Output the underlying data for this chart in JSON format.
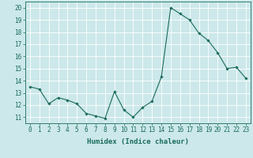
{
  "x": [
    0,
    1,
    2,
    3,
    4,
    5,
    6,
    7,
    8,
    9,
    10,
    11,
    12,
    13,
    14,
    15,
    16,
    17,
    18,
    19,
    20,
    21,
    22,
    23
  ],
  "y": [
    13.5,
    13.3,
    12.1,
    12.6,
    12.4,
    12.1,
    11.3,
    11.1,
    10.9,
    13.1,
    11.6,
    11.0,
    11.8,
    12.3,
    14.3,
    20.0,
    19.5,
    19.0,
    17.9,
    17.3,
    16.3,
    15.0,
    15.1,
    14.2
  ],
  "xlabel": "Humidex (Indice chaleur)",
  "ylabel": "",
  "xlim": [
    -0.5,
    23.5
  ],
  "ylim": [
    10.5,
    20.5
  ],
  "yticks": [
    11,
    12,
    13,
    14,
    15,
    16,
    17,
    18,
    19,
    20
  ],
  "xticks": [
    0,
    1,
    2,
    3,
    4,
    5,
    6,
    7,
    8,
    9,
    10,
    11,
    12,
    13,
    14,
    15,
    16,
    17,
    18,
    19,
    20,
    21,
    22,
    23
  ],
  "line_color": "#1a6b5a",
  "marker": "D",
  "marker_size": 1.8,
  "bg_color": "#cce8ea",
  "grid_color": "#ffffff",
  "label_fontsize": 6.5,
  "tick_fontsize": 5.5
}
